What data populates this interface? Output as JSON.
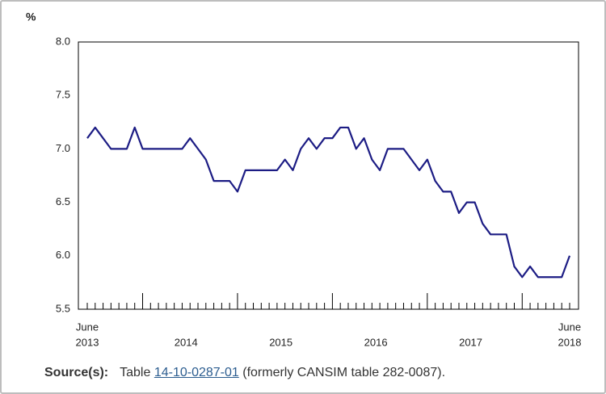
{
  "chart_data": {
    "type": "line",
    "y_unit": "%",
    "start_label": [
      "June",
      "2013"
    ],
    "year_labels": [
      "2014",
      "2015",
      "2016",
      "2017"
    ],
    "end_label": [
      "June",
      "2018"
    ],
    "series": [
      {
        "color": "#1c1c84",
        "values": [
          7.1,
          7.2,
          7.1,
          7.0,
          7.0,
          7.0,
          7.2,
          7.0,
          7.0,
          7.0,
          7.0,
          7.0,
          7.0,
          7.1,
          7.0,
          6.9,
          6.7,
          6.7,
          6.7,
          6.6,
          6.8,
          6.8,
          6.8,
          6.8,
          6.8,
          6.9,
          6.8,
          7.0,
          7.1,
          7.0,
          7.1,
          7.1,
          7.2,
          7.2,
          7.0,
          7.1,
          6.9,
          6.8,
          7.0,
          7.0,
          7.0,
          6.9,
          6.8,
          6.9,
          6.7,
          6.6,
          6.6,
          6.4,
          6.5,
          6.5,
          6.3,
          6.2,
          6.2,
          6.2,
          5.9,
          5.8,
          5.9,
          5.8,
          5.8,
          5.8,
          5.8,
          6.0
        ]
      }
    ],
    "ylim": [
      5.5,
      8.0
    ],
    "yticks": [
      {
        "value": 5.5,
        "label": "5.5"
      },
      {
        "value": 6.0,
        "label": "6.0"
      },
      {
        "value": 6.5,
        "label": "6.5"
      },
      {
        "value": 7.0,
        "label": "7.0"
      },
      {
        "value": 7.5,
        "label": "7.5"
      },
      {
        "value": 8.0,
        "label": "8.0"
      }
    ],
    "grid": false,
    "source": {
      "label": "Source(s):",
      "prefix": "Table",
      "link": "14-10-0287-01",
      "suffix": "(formerly CANSIM table 282-0087)."
    }
  }
}
